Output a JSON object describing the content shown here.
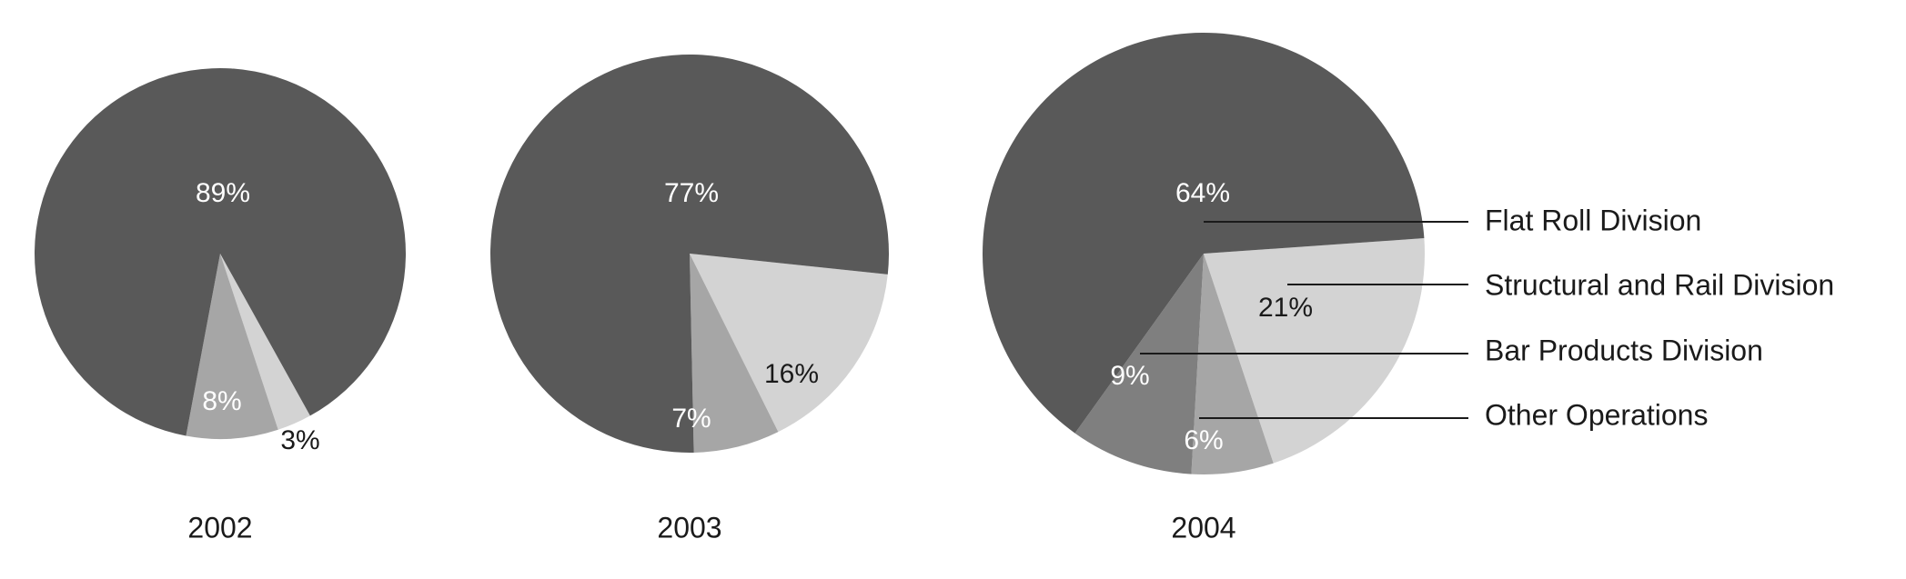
{
  "chart_data": {
    "type": "pie",
    "legend": {
      "placement": "right",
      "entries": [
        "Flat Roll Division",
        "Structural and Rail Division",
        "Bar Products Division",
        "Other Operations"
      ]
    },
    "colors": {
      "Flat Roll Division": "#595959",
      "Structural and Rail Division": "#d3d3d3",
      "Bar Products Division": "#7f7f7f",
      "Other Operations": "#a6a6a6"
    },
    "charts": [
      {
        "year": "2002",
        "slices": [
          {
            "name": "Flat Roll Division",
            "value": 89,
            "label": "89%"
          },
          {
            "name": "Structural and Rail Division",
            "value": 3,
            "label": "3%"
          },
          {
            "name": "Other Operations",
            "value": 8,
            "label": "8%"
          }
        ]
      },
      {
        "year": "2003",
        "slices": [
          {
            "name": "Flat Roll Division",
            "value": 77,
            "label": "77%"
          },
          {
            "name": "Structural and Rail Division",
            "value": 16,
            "label": "16%"
          },
          {
            "name": "Other Operations",
            "value": 7,
            "label": "7%"
          }
        ]
      },
      {
        "year": "2004",
        "slices": [
          {
            "name": "Flat Roll Division",
            "value": 64,
            "label": "64%"
          },
          {
            "name": "Structural and Rail Division",
            "value": 21,
            "label": "21%"
          },
          {
            "name": "Other Operations",
            "value": 6,
            "label": "6%"
          },
          {
            "name": "Bar Products Division",
            "value": 9,
            "label": "9%"
          }
        ]
      }
    ]
  }
}
